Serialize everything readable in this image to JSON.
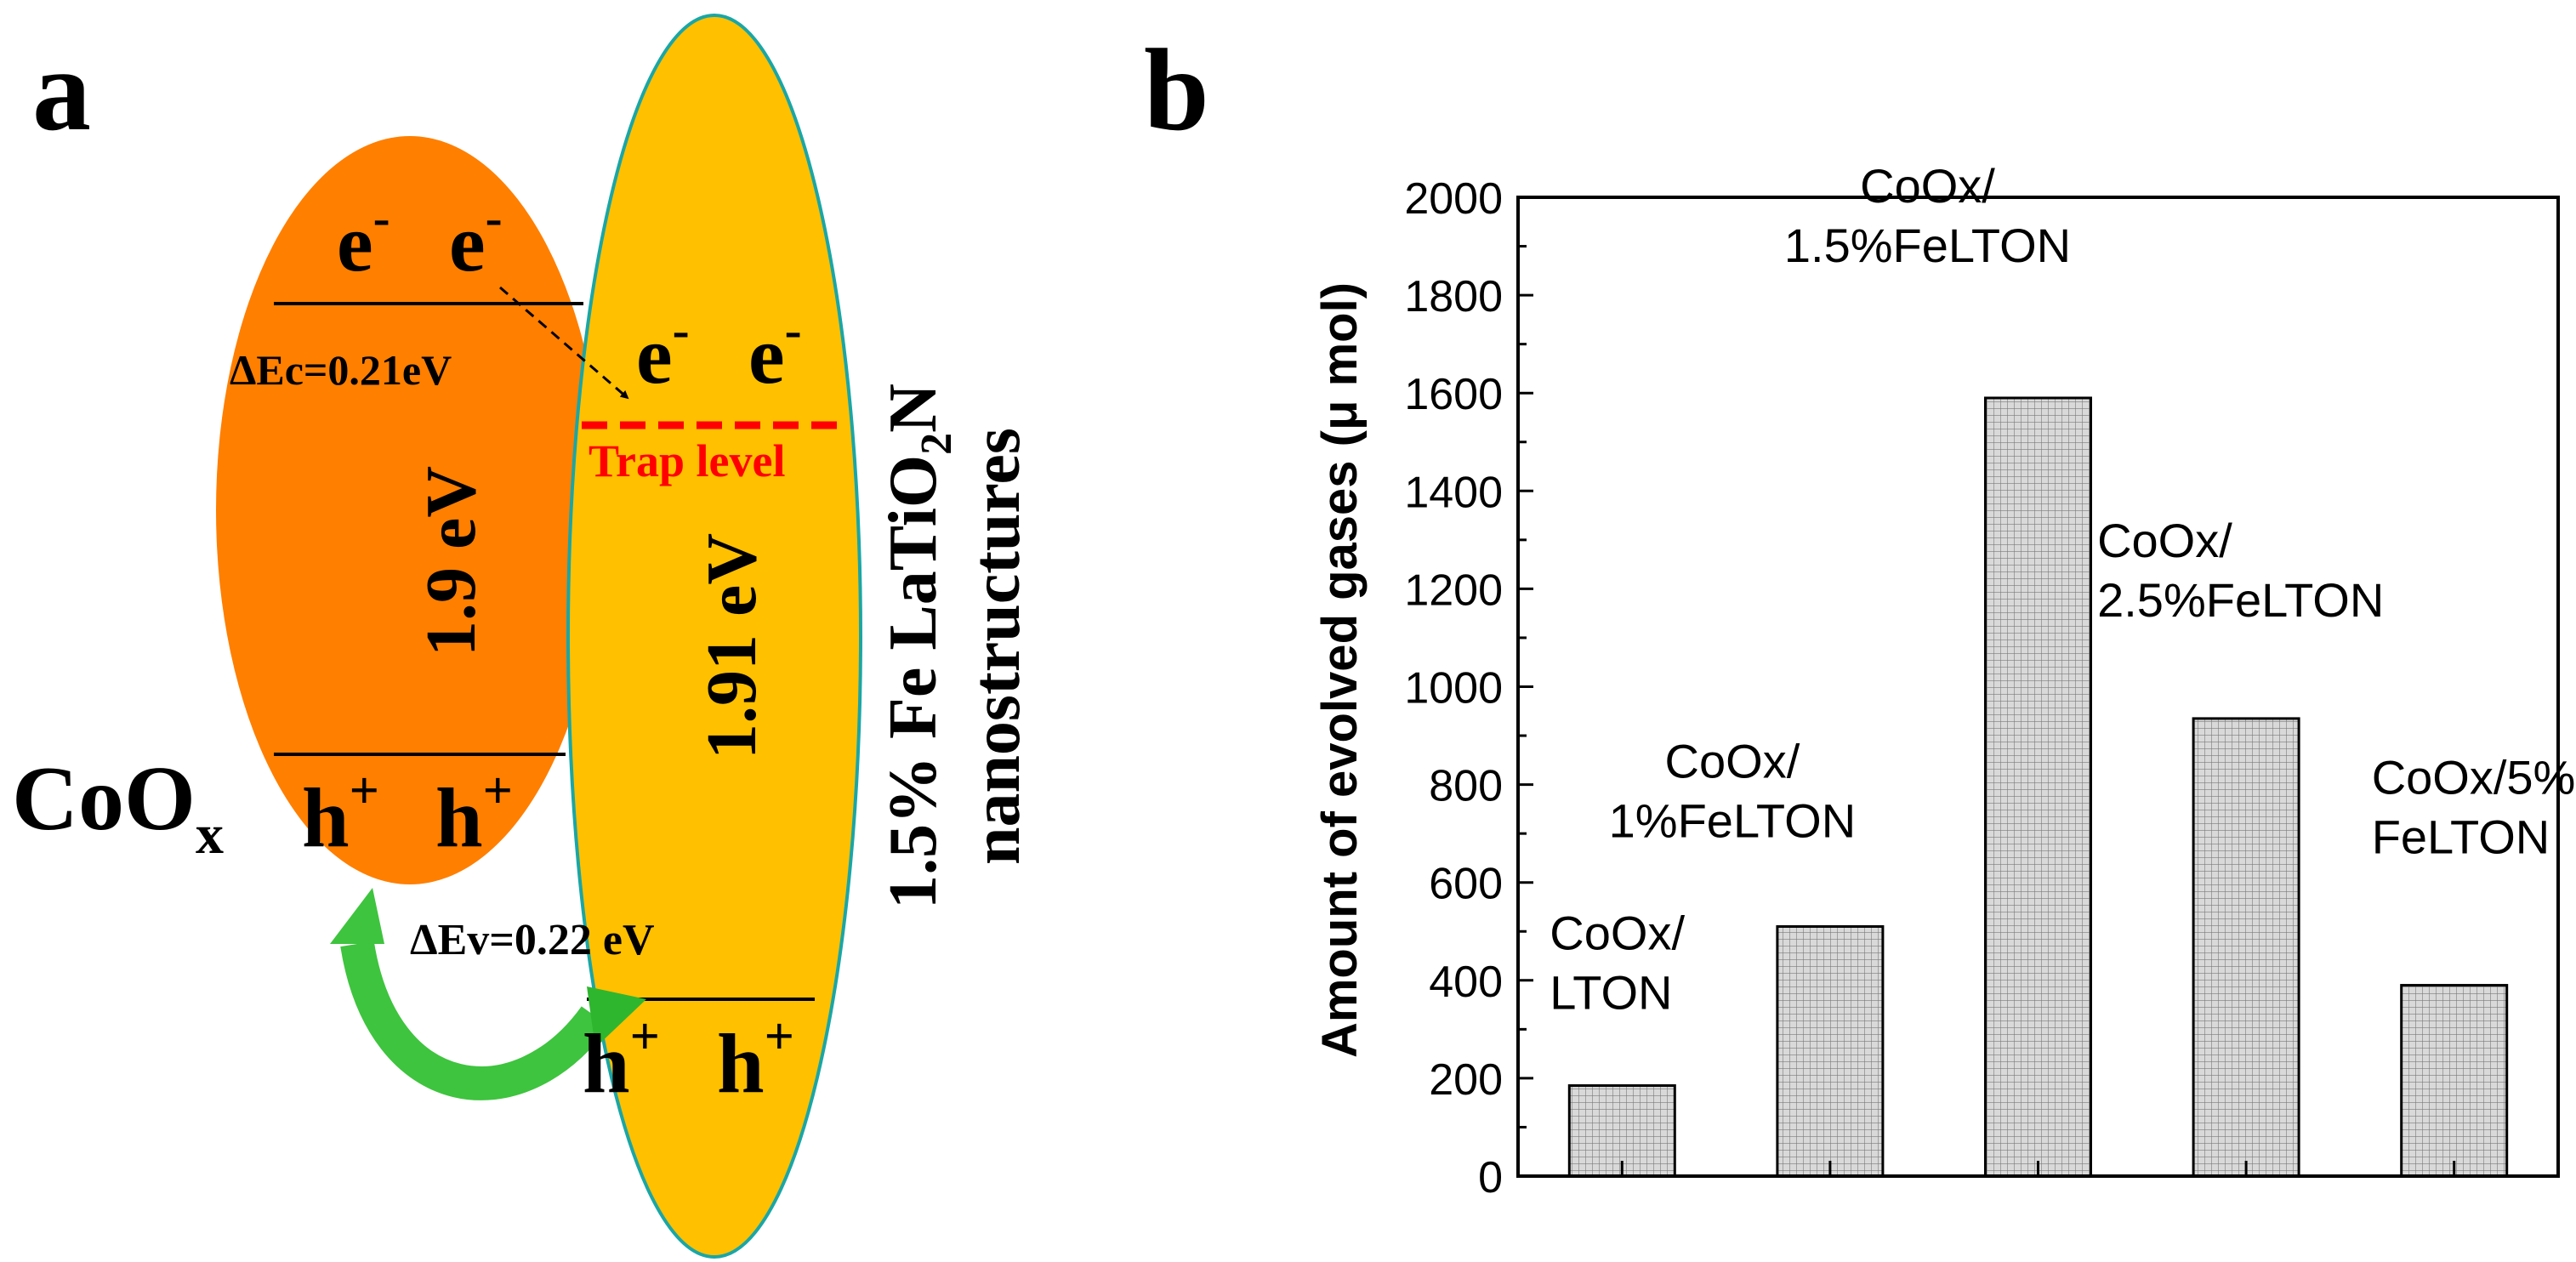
{
  "panel_a": {
    "label": "a",
    "colors": {
      "coox_fill": "#ff7f00",
      "lton_fill": "#ffc000",
      "lton_stroke": "#1aa6a6",
      "trap": "#ff0000",
      "arrow": "#3ec43e"
    },
    "coox": {
      "electron_1": "e",
      "electron_2": "e",
      "minus": "-",
      "hole_1": "h",
      "hole_2": "h",
      "plus": "+",
      "band_gap": "1.9 eV",
      "material_main": "CoO",
      "material_sub": "x"
    },
    "lton": {
      "electron_1": "e",
      "electron_2": "e",
      "minus": "-",
      "hole_1": "h",
      "hole_2": "h",
      "plus": "+",
      "band_gap": "1.91 eV",
      "trap_label": "Trap level",
      "title_line1_a": "1.5% Fe LaTiO",
      "title_line1_sub": "2",
      "title_line1_b": "N",
      "title_line2": "nanostructures"
    },
    "delta_ec": "ΔEc=0.21eV",
    "delta_ev": "ΔEv=0.22 eV"
  },
  "panel_b": {
    "label": "b",
    "chart_data": {
      "type": "bar",
      "categories": [
        "CoOx/LTON",
        "CoOx/1%FeLTON",
        "CoOx/1.5%FeLTON",
        "CoOx/2.5%FeLTON",
        "CoOx/5%FeLTON"
      ],
      "values": [
        185,
        510,
        1590,
        935,
        390
      ],
      "bar_labels": [
        [
          "CoOx/",
          "LTON"
        ],
        [
          "CoOx/",
          "1%FeLTON"
        ],
        [
          "CoOx/",
          "1.5%FeLTON"
        ],
        [
          "CoOx/",
          "2.5%FeLTON"
        ],
        [
          "CoOx/5%",
          "FeLTON"
        ]
      ],
      "title": "",
      "xlabel": "",
      "ylabel": "Amount of evolved gases (μ mol)",
      "ylim": [
        0,
        2000
      ],
      "yticks": [
        0,
        200,
        400,
        600,
        800,
        1000,
        1200,
        1400,
        1600,
        1800,
        2000
      ],
      "grid": false,
      "bar_fill": "#d9d9d9",
      "bar_pattern": "#7a7a7a"
    }
  }
}
